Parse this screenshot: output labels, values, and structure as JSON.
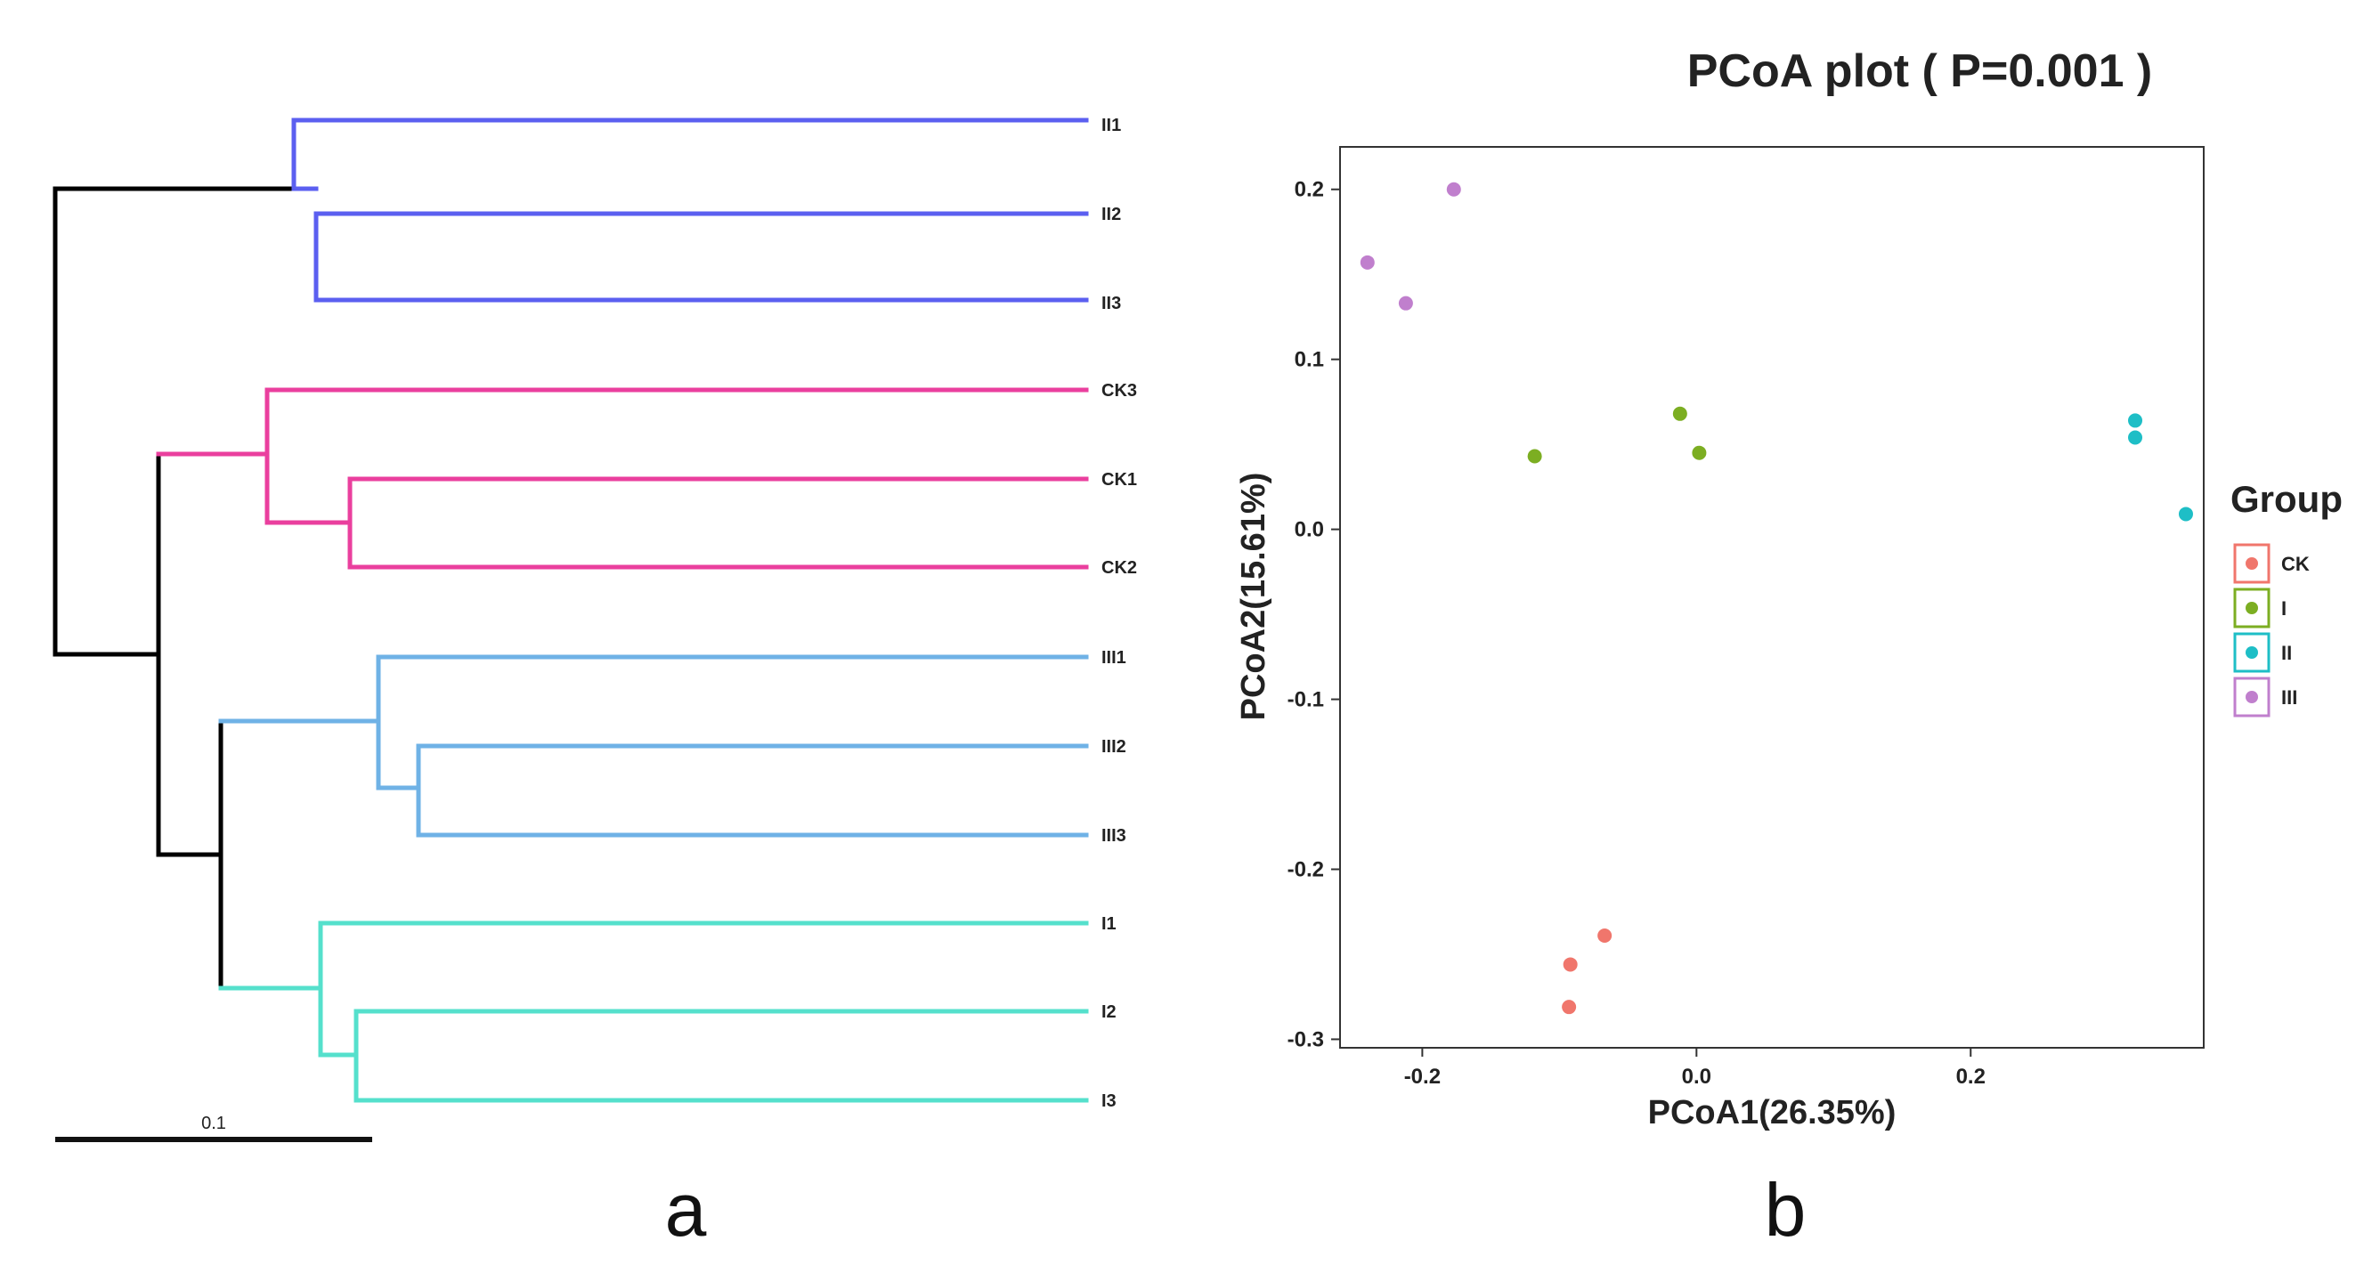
{
  "panel_labels": {
    "a": "a",
    "b": "b"
  },
  "chart_data": [
    {
      "type": "dendrogram",
      "scale_bar_label": "0.1",
      "scale_bar_value": 0.1,
      "branch_colors": {
        "root": "#000000",
        "II": "#5b5ff0",
        "CK": "#ea3f9e",
        "III": "#6fb2e6",
        "I": "#55e0cc"
      },
      "leaves": [
        "II1",
        "II2",
        "II3",
        "CK3",
        "CK1",
        "CK2",
        "III1",
        "III2",
        "III3",
        "I1",
        "I2",
        "I3"
      ]
    },
    {
      "type": "scatter",
      "title": "PCoA plot ( P=0.001 )",
      "xlabel": "PCoA1(26.35%)",
      "ylabel": "PCoA2(15.61%)",
      "xlim": [
        -0.26,
        0.37
      ],
      "ylim": [
        -0.305,
        0.225
      ],
      "xticks": [
        -0.2,
        0.0,
        0.2
      ],
      "xtick_labels": [
        "-0.2",
        "0.0",
        "0.2"
      ],
      "yticks": [
        0.2,
        0.1,
        0.0,
        -0.1,
        -0.2,
        -0.3
      ],
      "ytick_labels": [
        "0.2",
        "0.1",
        "0.0",
        "-0.1",
        "-0.2",
        "-0.3"
      ],
      "legend_title": "Group",
      "series": [
        {
          "name": "CK",
          "color": "#f0766c",
          "points": [
            [
              -0.067,
              -0.239
            ],
            [
              -0.092,
              -0.256
            ],
            [
              -0.093,
              -0.281
            ]
          ]
        },
        {
          "name": "I",
          "color": "#7cae22",
          "points": [
            [
              -0.012,
              0.068
            ],
            [
              0.002,
              0.045
            ],
            [
              -0.118,
              0.043
            ]
          ]
        },
        {
          "name": "II",
          "color": "#1ebec6",
          "points": [
            [
              0.32,
              0.064
            ],
            [
              0.32,
              0.054
            ],
            [
              0.357,
              0.009
            ]
          ]
        },
        {
          "name": "III",
          "color": "#c07fcd",
          "points": [
            [
              -0.177,
              0.2
            ],
            [
              -0.24,
              0.157
            ],
            [
              -0.212,
              0.133
            ]
          ]
        }
      ]
    }
  ]
}
